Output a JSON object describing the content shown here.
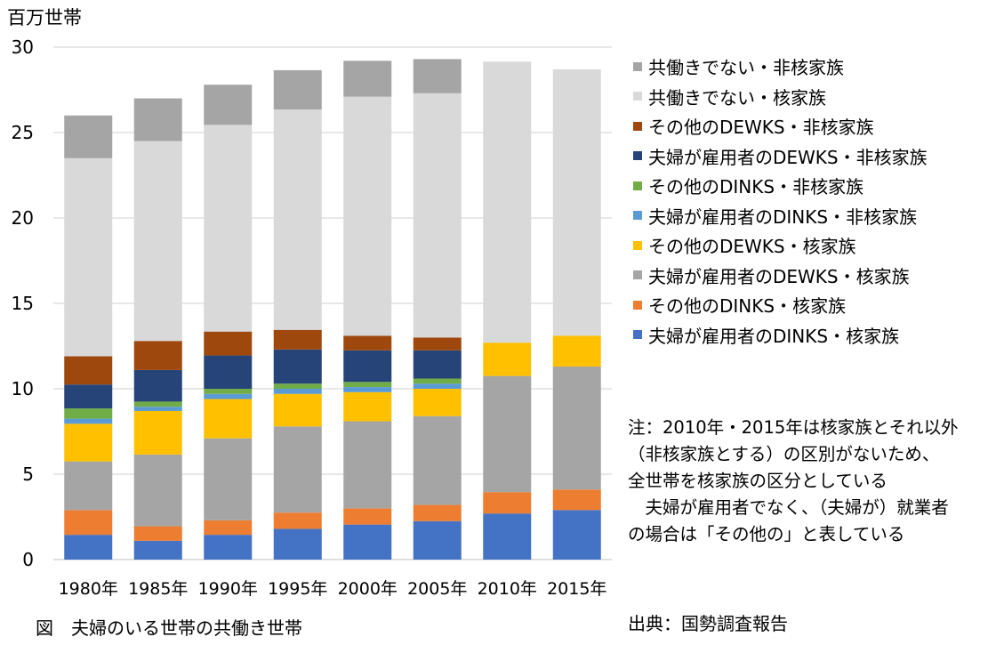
{
  "figure": {
    "y_unit_label": "百万世帯",
    "caption": "図　夫婦のいる世帯の共働き世帯",
    "source": "出典：国勢調査報告",
    "note": "注：2010年・2015年は核家族とそれ以外\n（非核家族とする）の区別がないため、\n全世帯を核家族の区分としている\n　夫婦が雇用者でなく、（夫婦が）就業者\nの場合は「その他の」と表している"
  },
  "chart_data": {
    "type": "bar",
    "stacked": true,
    "title": "",
    "xlabel": "",
    "ylabel": "百万世帯",
    "ylim": [
      0,
      30
    ],
    "yticks": [
      0,
      5,
      10,
      15,
      20,
      25,
      30
    ],
    "grid": true,
    "legend_position": "right",
    "categories": [
      "1980年",
      "1985年",
      "1990年",
      "1995年",
      "2000年",
      "2005年",
      "2010年",
      "2015年"
    ],
    "series": [
      {
        "name": "夫婦が雇用者のDINKS・核家族",
        "color": "#4472C4",
        "values": [
          1.45,
          1.1,
          1.45,
          1.8,
          2.05,
          2.25,
          2.7,
          2.9
        ]
      },
      {
        "name": "その他のDINKS・核家族",
        "color": "#ED7D31",
        "values": [
          1.45,
          0.85,
          0.85,
          0.95,
          0.95,
          0.95,
          1.25,
          1.2
        ]
      },
      {
        "name": "夫婦が雇用者のDEWKS・核家族",
        "color": "#A5A5A5",
        "values": [
          2.85,
          4.2,
          4.8,
          5.05,
          5.1,
          5.2,
          6.8,
          7.2
        ]
      },
      {
        "name": "その他のDEWKS・核家族",
        "color": "#FFC000",
        "values": [
          2.2,
          2.55,
          2.3,
          1.9,
          1.7,
          1.6,
          1.95,
          1.8
        ]
      },
      {
        "name": "夫婦が雇用者のDINKS・非核家族",
        "color": "#5B9BD5",
        "values": [
          0.3,
          0.25,
          0.3,
          0.3,
          0.3,
          0.3,
          0,
          0
        ]
      },
      {
        "name": "その他のDINKS・非核家族",
        "color": "#70AD47",
        "values": [
          0.6,
          0.3,
          0.3,
          0.3,
          0.3,
          0.3,
          0,
          0
        ]
      },
      {
        "name": "夫婦が雇用者のDEWKS・非核家族",
        "color": "#264478",
        "values": [
          1.4,
          1.85,
          1.95,
          2.0,
          1.85,
          1.65,
          0,
          0
        ]
      },
      {
        "name": "その他のDEWKS・非核家族",
        "color": "#9E480E",
        "values": [
          1.65,
          1.7,
          1.4,
          1.15,
          0.85,
          0.75,
          0,
          0
        ]
      },
      {
        "name": "共働きでない・核家族",
        "color": "#D9D9D9",
        "values": [
          11.6,
          11.7,
          12.1,
          12.9,
          14.0,
          14.3,
          16.45,
          15.6
        ]
      },
      {
        "name": "共働きでない・非核家族",
        "color": "#A5A5A5",
        "values": [
          2.5,
          2.5,
          2.35,
          2.3,
          2.1,
          2.0,
          0,
          0
        ]
      }
    ]
  }
}
